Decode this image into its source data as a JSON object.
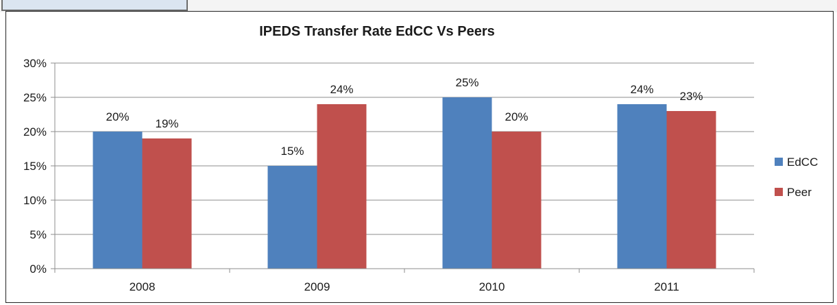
{
  "chart_data": {
    "type": "bar",
    "title": "IPEDS Transfer Rate EdCC Vs Peers",
    "xlabel": "",
    "ylabel": "",
    "categories": [
      "2008",
      "2009",
      "2010",
      "2011"
    ],
    "series": [
      {
        "name": "EdCC",
        "values": [
          20,
          15,
          25,
          24
        ],
        "color": "#4f81bd"
      },
      {
        "name": "Peer",
        "values": [
          19,
          24,
          20,
          23
        ],
        "color": "#c0504d"
      }
    ],
    "ylim": [
      0,
      30
    ],
    "yticks": [
      "0%",
      "5%",
      "10%",
      "15%",
      "20%",
      "25%",
      "30%"
    ],
    "data_labels": [
      [
        "20%",
        "15%",
        "25%",
        "24%"
      ],
      [
        "19%",
        "24%",
        "20%",
        "23%"
      ]
    ],
    "grid": true,
    "legend_position": "right"
  }
}
